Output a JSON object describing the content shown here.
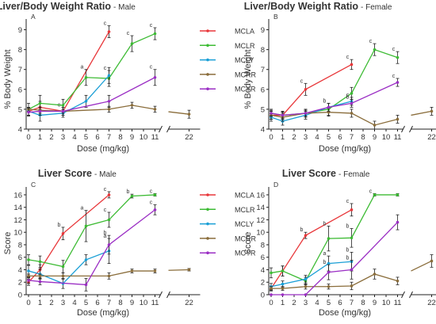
{
  "colors": {
    "MCLA": "#e8373a",
    "MCLR": "#3dbb34",
    "MCLY": "#1a9fd6",
    "MCRR": "#8a6d3b",
    "MCYR": "#9b2fc4"
  },
  "chart_data": [
    {
      "type": "line",
      "panel": "A",
      "title": "Liver/Body Weight Ratio",
      "subtitle": "- Male",
      "xlabel": "Dose (mg/kg)",
      "ylabel": "% Body Weight",
      "xticks": [
        0,
        1,
        2,
        3,
        4,
        5,
        6,
        7,
        8,
        9,
        10,
        11,
        22
      ],
      "yticks": [
        4,
        5,
        6,
        7,
        8,
        9
      ],
      "ylim": [
        4,
        9.3
      ],
      "series": [
        {
          "name": "MCLA",
          "x": [
            0,
            1,
            3,
            7
          ],
          "y": [
            4.9,
            5.1,
            4.9,
            8.9
          ],
          "err": [
            0.2,
            0.3,
            0.2,
            0.3
          ],
          "labels": [
            "",
            "",
            "c",
            "c"
          ]
        },
        {
          "name": "MCLR",
          "x": [
            0,
            1,
            3,
            5,
            7,
            9,
            11
          ],
          "y": [
            5.0,
            5.3,
            5.2,
            6.6,
            6.55,
            8.3,
            8.8
          ],
          "err": [
            0.3,
            0.4,
            0.3,
            0.4,
            0.4,
            0.4,
            0.3
          ],
          "labels": [
            "",
            "",
            "",
            "a",
            "c",
            "c",
            "c"
          ]
        },
        {
          "name": "MCLY",
          "x": [
            0,
            1,
            3,
            5,
            7
          ],
          "y": [
            4.9,
            4.7,
            4.8,
            5.4,
            6.7
          ],
          "err": [
            0.2,
            0.3,
            0.2,
            0.3,
            0.4
          ],
          "labels": [
            "",
            "",
            "",
            "",
            ""
          ]
        },
        {
          "name": "MCRR",
          "x": [
            0,
            1,
            3,
            7,
            9,
            11,
            22
          ],
          "y": [
            5.0,
            4.95,
            4.9,
            5.0,
            5.2,
            5.0,
            4.75
          ],
          "err": [
            0.1,
            0.15,
            0.1,
            0.15,
            0.15,
            0.15,
            0.2
          ],
          "labels": [
            "",
            "",
            "",
            "",
            "",
            "",
            ""
          ]
        },
        {
          "name": "MCYR",
          "x": [
            0,
            1,
            3,
            7,
            11
          ],
          "y": [
            4.85,
            4.9,
            4.9,
            5.4,
            6.6
          ],
          "err": [
            0.2,
            0.2,
            0.2,
            0.3,
            0.4
          ],
          "labels": [
            "",
            "",
            "",
            "",
            "c"
          ]
        }
      ]
    },
    {
      "type": "line",
      "panel": "B",
      "title": "Liver/Body Weight Ratio",
      "subtitle": "- Female",
      "xlabel": "Dose (mg/kg)",
      "ylabel": "% Body Weight",
      "xticks": [
        0,
        1,
        2,
        3,
        4,
        5,
        6,
        7,
        8,
        9,
        10,
        11,
        22
      ],
      "yticks": [
        4,
        5,
        6,
        7,
        8,
        9
      ],
      "ylim": [
        4,
        9.3
      ],
      "series": [
        {
          "name": "MCLA",
          "x": [
            0,
            1,
            3,
            7
          ],
          "y": [
            4.7,
            4.7,
            6.0,
            7.25
          ],
          "err": [
            0.2,
            0.2,
            0.3,
            0.25
          ],
          "labels": [
            "",
            "",
            "c",
            "c"
          ]
        },
        {
          "name": "MCLR",
          "x": [
            0,
            1,
            3,
            5,
            7,
            9,
            11
          ],
          "y": [
            4.8,
            4.7,
            4.8,
            5.0,
            5.8,
            8.0,
            7.6
          ],
          "err": [
            0.2,
            0.2,
            0.2,
            0.3,
            0.3,
            0.3,
            0.3
          ],
          "labels": [
            "",
            "",
            "",
            "",
            "",
            "c",
            "c"
          ]
        },
        {
          "name": "MCLY",
          "x": [
            0,
            1,
            3,
            5,
            7
          ],
          "y": [
            4.6,
            4.4,
            4.7,
            5.1,
            5.4
          ],
          "err": [
            0.2,
            0.2,
            0.2,
            0.2,
            0.2
          ],
          "labels": [
            "",
            "",
            "",
            "b",
            "c"
          ]
        },
        {
          "name": "MCRR",
          "x": [
            0,
            1,
            3,
            5,
            7,
            9,
            11,
            22
          ],
          "y": [
            4.7,
            4.6,
            4.8,
            4.85,
            4.8,
            4.2,
            4.5,
            4.9
          ],
          "err": [
            0.2,
            0.2,
            0.2,
            0.2,
            0.2,
            0.2,
            0.2,
            0.2
          ],
          "labels": [
            "",
            "",
            "",
            "",
            "",
            "",
            "",
            ""
          ]
        },
        {
          "name": "MCYR",
          "x": [
            0,
            1,
            3,
            5,
            7,
            11
          ],
          "y": [
            4.8,
            4.7,
            4.8,
            5.1,
            5.3,
            6.35
          ],
          "err": [
            0.15,
            0.15,
            0.15,
            0.2,
            0.2,
            0.2
          ],
          "labels": [
            "",
            "",
            "",
            "",
            "b",
            "c"
          ]
        }
      ]
    },
    {
      "type": "line",
      "panel": "C",
      "title": "Liver Score",
      "subtitle": "- Male",
      "xlabel": "Dose (mg/kg)",
      "ylabel": "Score",
      "xticks": [
        0,
        1,
        2,
        3,
        4,
        5,
        6,
        7,
        8,
        9,
        10,
        11,
        22
      ],
      "yticks": [
        0,
        2,
        4,
        6,
        8,
        10,
        12,
        14,
        16
      ],
      "ylim": [
        0,
        16.5
      ],
      "series": [
        {
          "name": "MCLA",
          "x": [
            0,
            1,
            3,
            7
          ],
          "y": [
            2.0,
            4.0,
            9.8,
            16.0
          ],
          "err": [
            0.5,
            0.8,
            1.0,
            0.5
          ],
          "labels": [
            "",
            "",
            "b",
            "c"
          ]
        },
        {
          "name": "MCLR",
          "x": [
            0,
            1,
            3,
            5,
            7,
            9,
            11
          ],
          "y": [
            5.6,
            5.3,
            4.5,
            11.0,
            12.0,
            15.8,
            16.0
          ],
          "err": [
            0.8,
            0.9,
            1.0,
            2.5,
            1.2,
            0.3,
            0.2
          ],
          "labels": [
            "",
            "",
            "",
            "a",
            "c",
            "b",
            "c"
          ]
        },
        {
          "name": "MCLY",
          "x": [
            0,
            1,
            3,
            5,
            7
          ],
          "y": [
            3.8,
            3.3,
            1.8,
            5.6,
            7.0
          ],
          "err": [
            0.9,
            0.8,
            0.8,
            0.8,
            2.0
          ],
          "labels": [
            "",
            "",
            "",
            "",
            "a"
          ]
        },
        {
          "name": "MCRR",
          "x": [
            0,
            1,
            3,
            7,
            9,
            11,
            22
          ],
          "y": [
            3.0,
            3.0,
            3.0,
            3.0,
            3.8,
            3.8,
            4.0
          ],
          "err": [
            0.3,
            0.3,
            0.5,
            0.5,
            0.3,
            0.3,
            0.2
          ],
          "labels": [
            "",
            "",
            "",
            "",
            "",
            "",
            ""
          ]
        },
        {
          "name": "MCYR",
          "x": [
            0,
            1,
            5,
            7,
            11
          ],
          "y": [
            2.3,
            2.1,
            1.6,
            8.0,
            13.6
          ],
          "err": [
            0.5,
            0.5,
            1.0,
            1.5,
            0.8
          ],
          "labels": [
            "",
            "",
            "",
            "b",
            "c"
          ]
        }
      ]
    },
    {
      "type": "line",
      "panel": "D",
      "title": "Liver Score",
      "subtitle": "- Female",
      "xlabel": "Dose (mg/kg)",
      "ylabel": "Score",
      "xticks": [
        0,
        1,
        2,
        3,
        4,
        5,
        6,
        7,
        8,
        9,
        10,
        11,
        22
      ],
      "yticks": [
        0,
        2,
        4,
        6,
        8,
        10,
        12,
        14,
        16
      ],
      "ylim": [
        0,
        16.5
      ],
      "series": [
        {
          "name": "MCLA",
          "x": [
            0,
            1,
            3,
            7
          ],
          "y": [
            1.0,
            3.8,
            9.5,
            13.6
          ],
          "err": [
            0.4,
            0.8,
            0.5,
            1.0
          ],
          "labels": [
            "",
            "",
            "b",
            "c"
          ]
        },
        {
          "name": "MCLR",
          "x": [
            0,
            1,
            3,
            5,
            7,
            9,
            11
          ],
          "y": [
            3.5,
            3.8,
            2.2,
            9.0,
            9.1,
            16.0,
            16.0
          ],
          "err": [
            0.8,
            0.8,
            0.6,
            2.0,
            1.5,
            0.2,
            0.2
          ],
          "labels": [
            "",
            "",
            "",
            "b",
            "b",
            "c",
            ""
          ]
        },
        {
          "name": "MCLY",
          "x": [
            0,
            1,
            3,
            5,
            7
          ],
          "y": [
            1.3,
            1.7,
            2.5,
            5.0,
            5.3
          ],
          "err": [
            0.5,
            0.5,
            0.6,
            1.2,
            1.5
          ],
          "labels": [
            "",
            "",
            "",
            "a",
            "b"
          ]
        },
        {
          "name": "MCRR",
          "x": [
            0,
            1,
            3,
            5,
            7,
            9,
            11,
            22
          ],
          "y": [
            1.0,
            1.0,
            1.3,
            1.3,
            1.4,
            3.3,
            2.2,
            5.4
          ],
          "err": [
            0.3,
            0.3,
            0.4,
            0.4,
            0.6,
            0.8,
            0.6,
            1.0
          ],
          "labels": [
            "",
            "",
            "",
            "",
            "",
            "",
            "",
            ""
          ]
        },
        {
          "name": "MCYR",
          "x": [
            0,
            1,
            3,
            5,
            7,
            11
          ],
          "y": [
            0.0,
            0.0,
            0.0,
            3.6,
            4.0,
            11.6
          ],
          "err": [
            0.0,
            0.0,
            0.0,
            1.2,
            1.5,
            1.2
          ],
          "labels": [
            "",
            "",
            "",
            "b",
            "b",
            ""
          ]
        }
      ]
    }
  ]
}
